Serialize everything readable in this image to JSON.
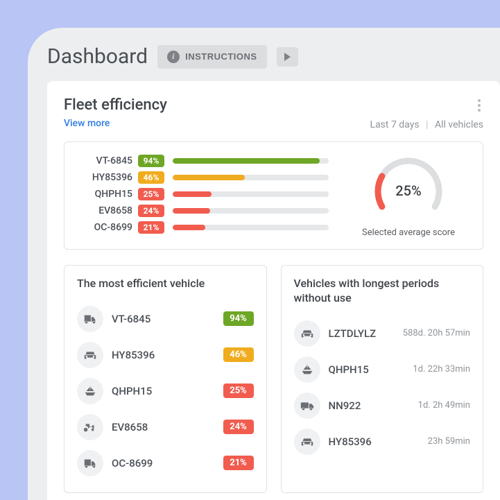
{
  "colors": {
    "page_bg": "#b8c5f5",
    "frame_bg": "#edeeef",
    "card_bg": "#ffffff",
    "green": "#6ea626",
    "amber": "#f0ac1f",
    "red": "#f15c4e",
    "text_primary": "#3f4449",
    "text_muted": "#8f9398",
    "track": "#e5e7e9",
    "link": "#2f7de1"
  },
  "header": {
    "title": "Dashboard",
    "instructions_label": "INSTRUCTIONS"
  },
  "fleet": {
    "title": "Fleet efficiency",
    "view_more": "View more",
    "filter_period": "Last 7 days",
    "filter_scope": "All vehicles",
    "gauge": {
      "value_text": "25%",
      "value": 25,
      "label": "Selected average score",
      "arc_color": "#f15c4e",
      "track_color": "#dcdee0",
      "bg": "#ffffff"
    },
    "bars": [
      {
        "name": "VT-6845",
        "pct": 94,
        "pct_text": "94%",
        "color": "#6ea626"
      },
      {
        "name": "HY85396",
        "pct": 46,
        "pct_text": "46%",
        "color": "#f0ac1f"
      },
      {
        "name": "QHPH15",
        "pct": 25,
        "pct_text": "25%",
        "color": "#f15c4e"
      },
      {
        "name": "EV8658",
        "pct": 24,
        "pct_text": "24%",
        "color": "#f15c4e"
      },
      {
        "name": "OC-8699",
        "pct": 21,
        "pct_text": "21%",
        "color": "#f15c4e"
      }
    ]
  },
  "efficient": {
    "title": "The most efficient vehicle",
    "rows": [
      {
        "icon": "truck-small",
        "name": "VT-6845",
        "pct_text": "94%",
        "color": "#6ea626"
      },
      {
        "icon": "car",
        "name": "HY85396",
        "pct_text": "46%",
        "color": "#f0ac1f"
      },
      {
        "icon": "boat",
        "name": "QHPH15",
        "pct_text": "25%",
        "color": "#f15c4e"
      },
      {
        "icon": "tractor",
        "name": "EV8658",
        "pct_text": "24%",
        "color": "#f15c4e"
      },
      {
        "icon": "truck-small",
        "name": "OC-8699",
        "pct_text": "21%",
        "color": "#f15c4e"
      }
    ]
  },
  "idle": {
    "title": "Vehicles with longest periods without use",
    "rows": [
      {
        "icon": "car",
        "name": "LZTDLYLZ",
        "duration": "588d. 20h 57min"
      },
      {
        "icon": "boat",
        "name": "QHPH15",
        "duration": "1d. 22h 33min"
      },
      {
        "icon": "truck-big",
        "name": "NN922",
        "duration": "1d. 2h 49min"
      },
      {
        "icon": "car",
        "name": "HY85396",
        "duration": "23h 59min"
      }
    ]
  }
}
